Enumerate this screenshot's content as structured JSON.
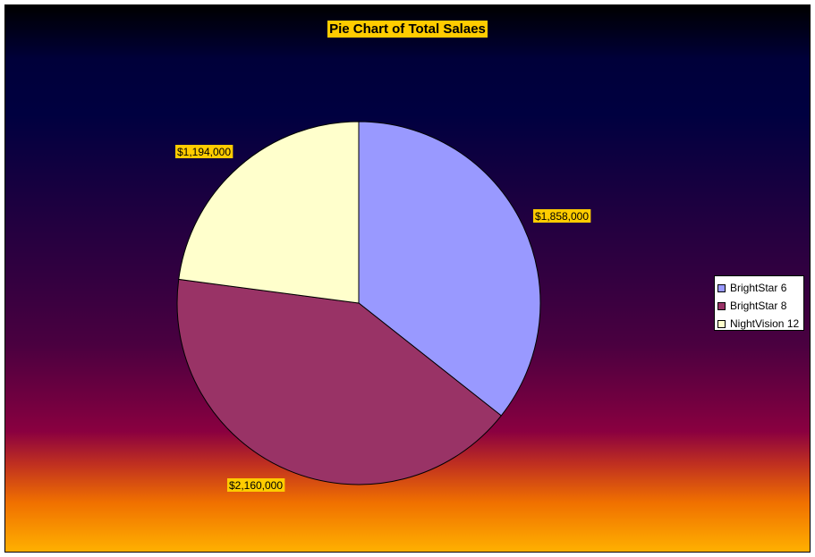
{
  "chart_data": {
    "type": "pie",
    "title": "Pie Chart of Total Salaes",
    "categories": [
      "BrightStar 6",
      "BrightStar 8",
      "NightVision 12"
    ],
    "values": [
      1858000,
      2160000,
      1194000
    ],
    "data_labels": [
      "$1,858,000",
      "$2,160,000",
      "$1,194,000"
    ],
    "colors": [
      "#9999ff",
      "#993366",
      "#ffffcc"
    ],
    "start_angle_deg": 0,
    "direction": "clockwise",
    "legend_position": "right"
  }
}
